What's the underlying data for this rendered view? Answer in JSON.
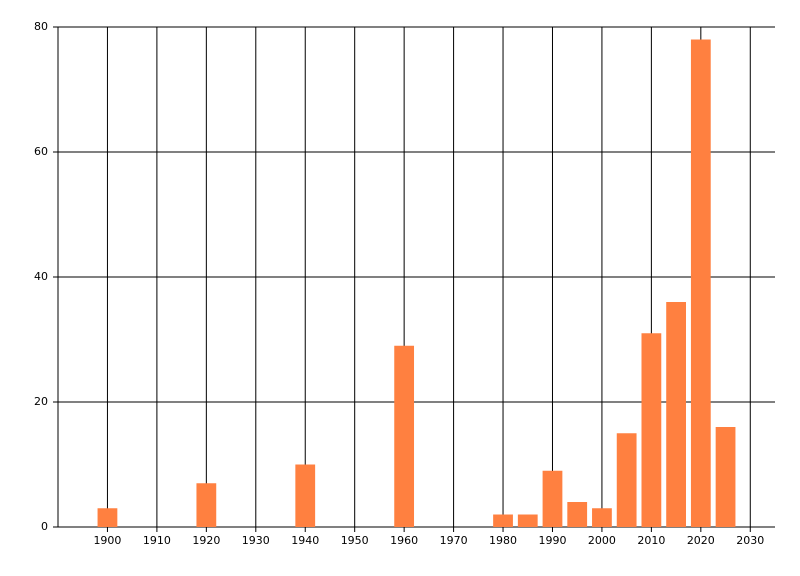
{
  "chart_data": {
    "type": "bar",
    "x": [
      1900,
      1920,
      1940,
      1960,
      1980,
      1985,
      1990,
      1995,
      2000,
      2005,
      2010,
      2015,
      2020,
      2025
    ],
    "values": [
      3,
      7,
      10,
      29,
      2,
      2,
      9,
      4,
      3,
      15,
      31,
      36,
      78,
      16
    ],
    "color": "#ff8040",
    "xlim": [
      1890,
      2035
    ],
    "xticks": [
      1900,
      1910,
      1920,
      1930,
      1940,
      1950,
      1960,
      1970,
      1980,
      1990,
      2000,
      2010,
      2020,
      2030
    ],
    "ylim": [
      0,
      80
    ],
    "yticks": [
      0,
      20,
      40,
      60,
      80
    ],
    "grid": true
  }
}
